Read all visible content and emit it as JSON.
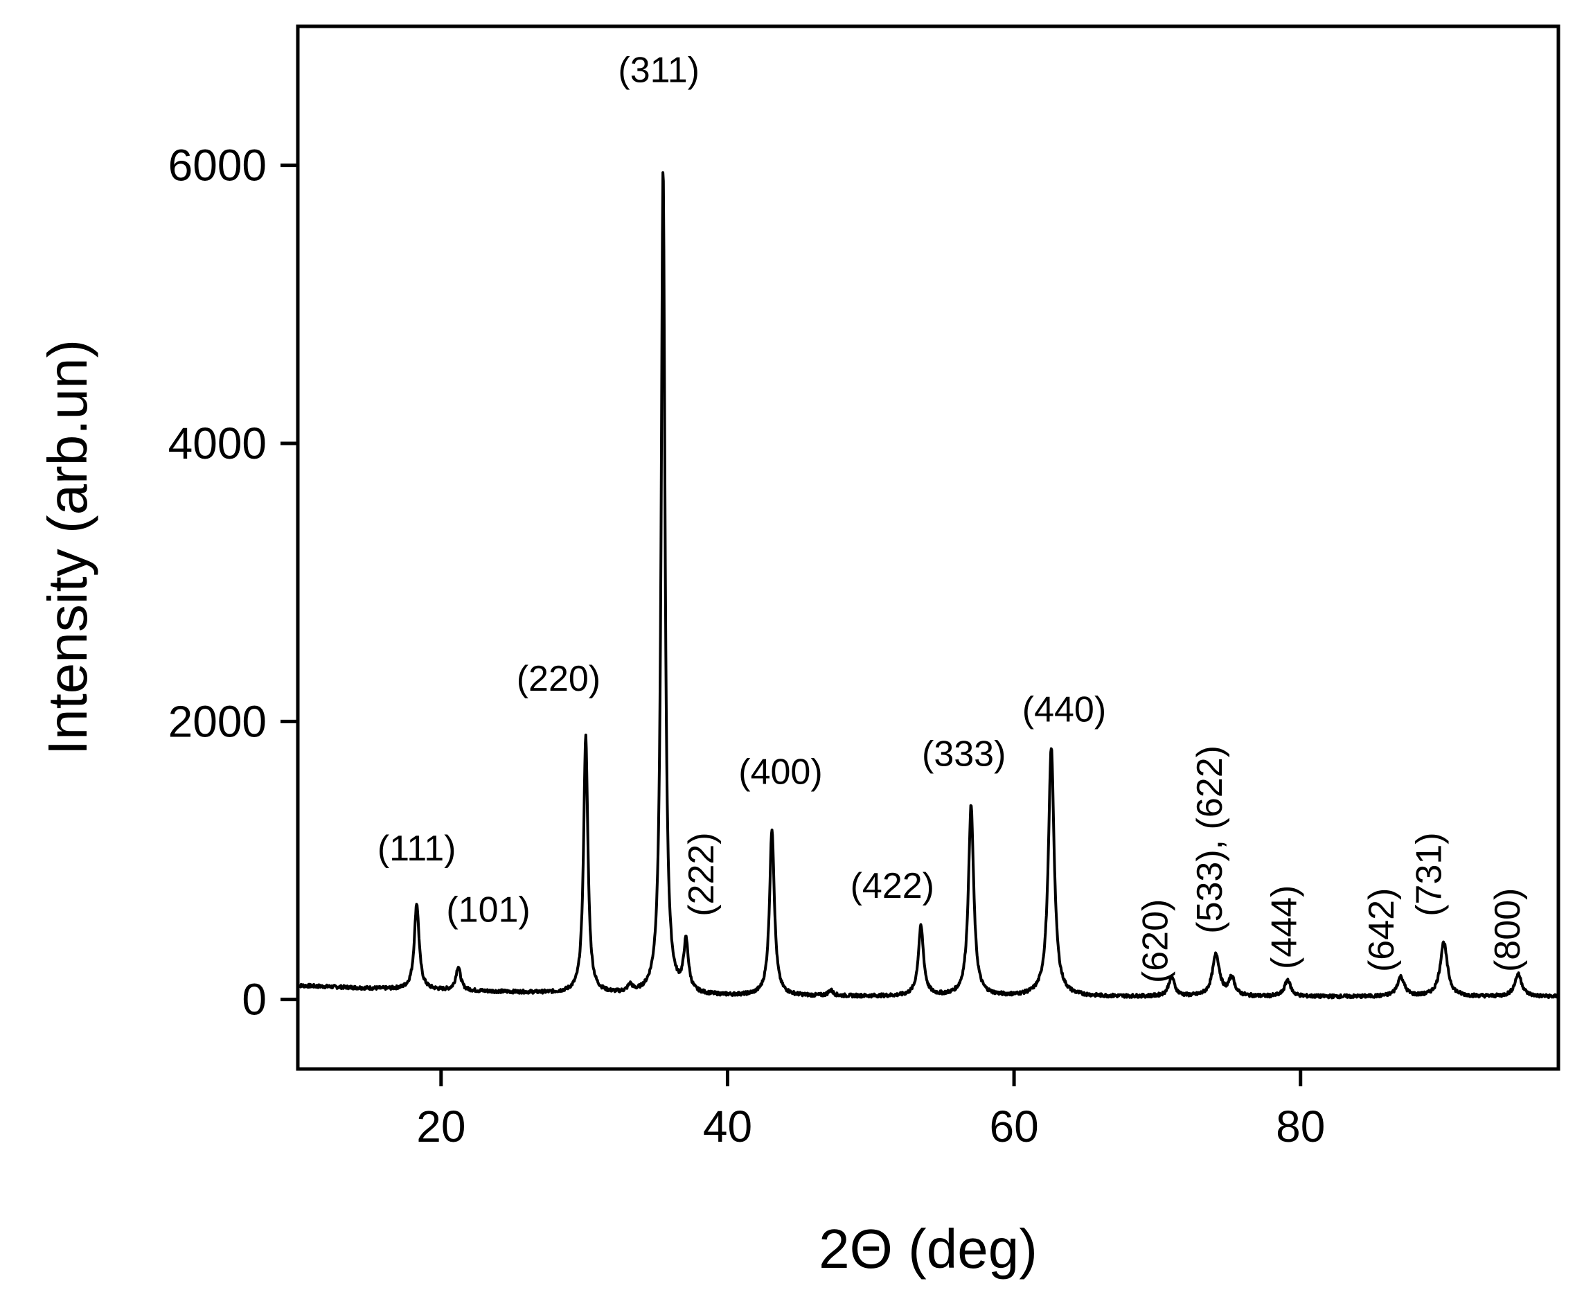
{
  "chart_data": {
    "type": "line",
    "title": "",
    "xlabel": "2Θ (deg)",
    "ylabel": "Intensity (arb.un)",
    "xlim": [
      10,
      98
    ],
    "ylim": [
      -500,
      7000
    ],
    "xticks": [
      20,
      40,
      60,
      80
    ],
    "yticks": [
      0,
      2000,
      4000,
      6000
    ],
    "grid": false,
    "legend": "none",
    "line_color": "#000000",
    "series": [
      {
        "baseline": [
          [
            10,
            100
          ],
          [
            15,
            80
          ],
          [
            18,
            70
          ],
          [
            22,
            60
          ],
          [
            26,
            50
          ],
          [
            30,
            40
          ],
          [
            34,
            30
          ],
          [
            40,
            25
          ],
          [
            50,
            22
          ],
          [
            60,
            20
          ],
          [
            70,
            20
          ],
          [
            80,
            20
          ],
          [
            90,
            20
          ],
          [
            98,
            20
          ]
        ],
        "peaks": [
          {
            "x": 18.3,
            "y": 620,
            "w": 0.2
          },
          {
            "x": 21.2,
            "y": 170,
            "w": 0.2
          },
          {
            "x": 30.1,
            "y": 1850,
            "w": 0.18
          },
          {
            "x": 33.2,
            "y": 50,
            "w": 0.2
          },
          {
            "x": 35.5,
            "y": 5950,
            "w": 0.16
          },
          {
            "x": 37.1,
            "y": 360,
            "w": 0.2
          },
          {
            "x": 43.1,
            "y": 1200,
            "w": 0.2
          },
          {
            "x": 47.2,
            "y": 40,
            "w": 0.2
          },
          {
            "x": 53.5,
            "y": 500,
            "w": 0.22
          },
          {
            "x": 57.0,
            "y": 1370,
            "w": 0.22
          },
          {
            "x": 62.6,
            "y": 1790,
            "w": 0.24
          },
          {
            "x": 71.0,
            "y": 140,
            "w": 0.25
          },
          {
            "x": 74.1,
            "y": 300,
            "w": 0.3
          },
          {
            "x": 75.2,
            "y": 130,
            "w": 0.25
          },
          {
            "x": 79.1,
            "y": 120,
            "w": 0.25
          },
          {
            "x": 87.0,
            "y": 140,
            "w": 0.3
          },
          {
            "x": 90.0,
            "y": 390,
            "w": 0.3
          },
          {
            "x": 95.2,
            "y": 160,
            "w": 0.3
          }
        ]
      }
    ],
    "annotations": [
      {
        "text": "(111)",
        "x": 18.3,
        "y": 1000,
        "rotate": 0
      },
      {
        "text": "(101)",
        "x": 23.3,
        "y": 560,
        "rotate": 0
      },
      {
        "text": "(220)",
        "x": 28.2,
        "y": 2220,
        "rotate": 0
      },
      {
        "text": "(311)",
        "x": 35.2,
        "y": 6600,
        "rotate": 0
      },
      {
        "text": "(222)",
        "x": 39.0,
        "y": 900,
        "rotate": -90
      },
      {
        "text": "(400)",
        "x": 43.7,
        "y": 1550,
        "rotate": 0
      },
      {
        "text": "(422)",
        "x": 51.5,
        "y": 730,
        "rotate": 0
      },
      {
        "text": "(333)",
        "x": 56.5,
        "y": 1680,
        "rotate": 0
      },
      {
        "text": "(440)",
        "x": 63.5,
        "y": 2000,
        "rotate": 0
      },
      {
        "text": "(620)",
        "x": 70.7,
        "y": 420,
        "rotate": -90
      },
      {
        "text": "(533), (622)",
        "x": 74.5,
        "y": 1150,
        "rotate": -90
      },
      {
        "text": "(444)",
        "x": 79.7,
        "y": 520,
        "rotate": -90
      },
      {
        "text": "(642)",
        "x": 86.5,
        "y": 500,
        "rotate": -90
      },
      {
        "text": "(731)",
        "x": 89.8,
        "y": 900,
        "rotate": -90
      },
      {
        "text": "(800)",
        "x": 95.3,
        "y": 500,
        "rotate": -90
      }
    ]
  }
}
